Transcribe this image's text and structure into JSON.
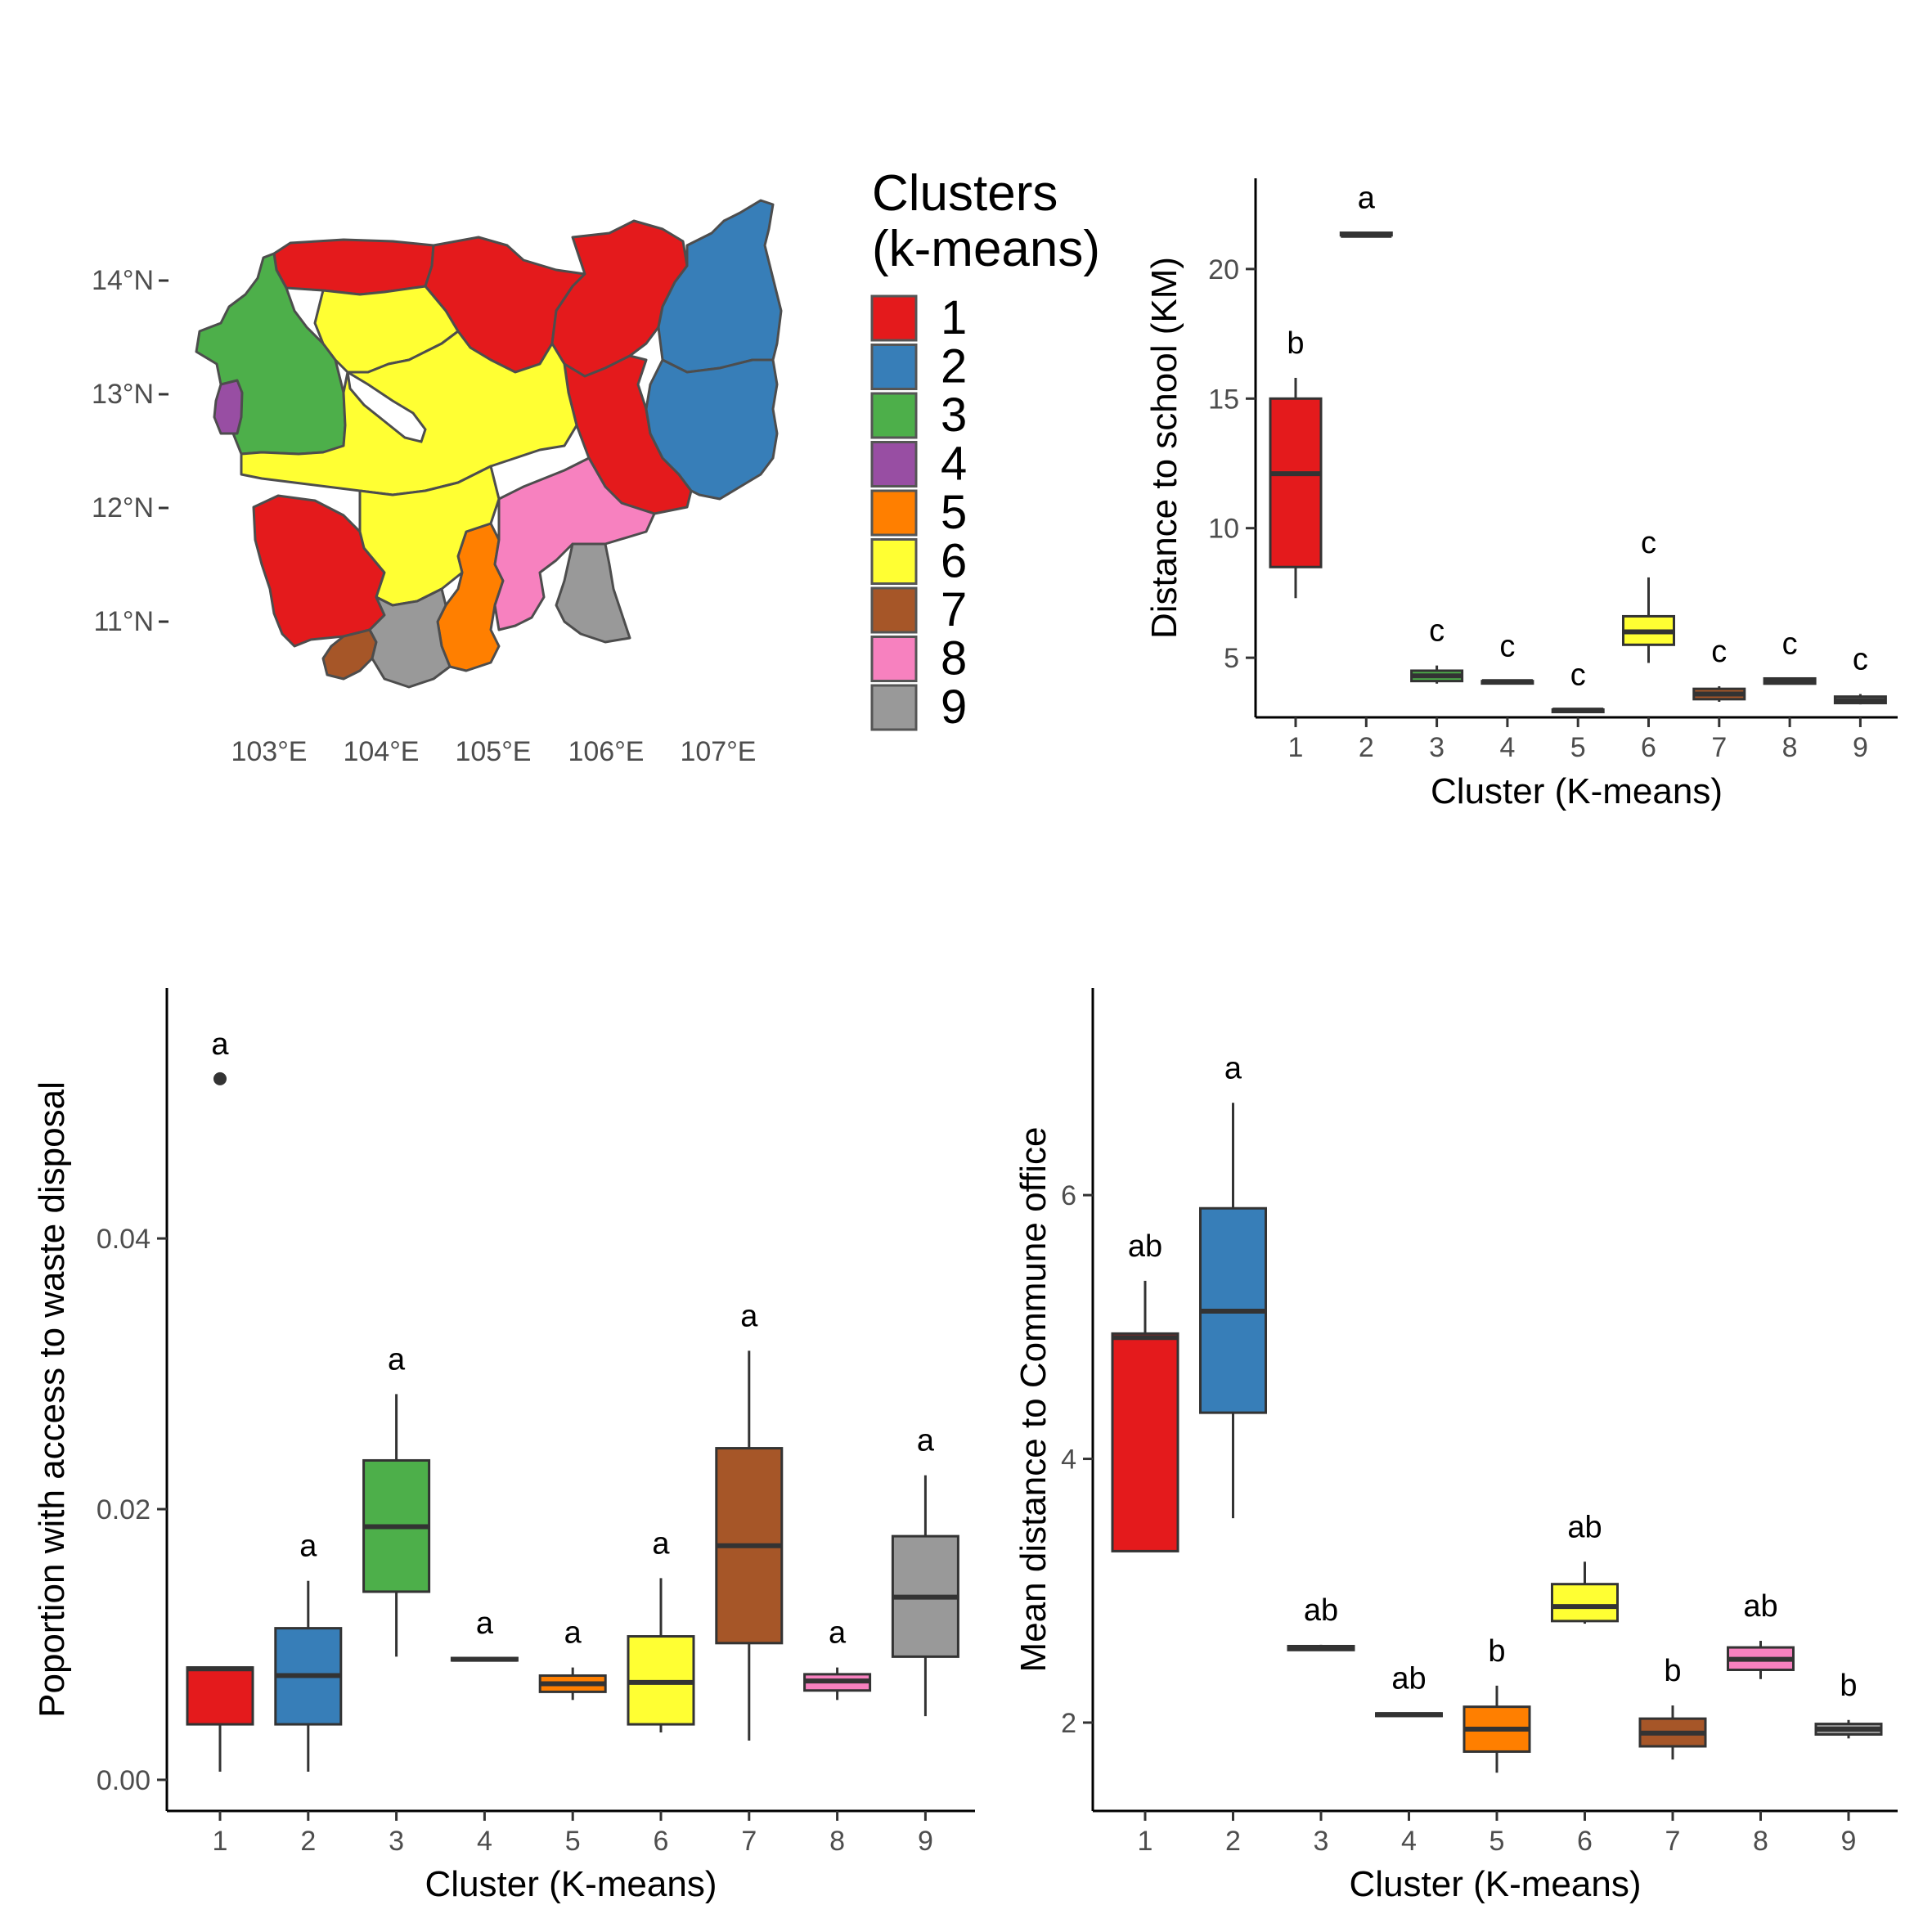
{
  "legend": {
    "title_line1": "Clusters",
    "title_line2": "(k-means)",
    "items": [
      {
        "label": "1",
        "color": "#E41A1C"
      },
      {
        "label": "2",
        "color": "#377EB8"
      },
      {
        "label": "3",
        "color": "#4DAF4A"
      },
      {
        "label": "4",
        "color": "#984EA3"
      },
      {
        "label": "5",
        "color": "#FF7F00"
      },
      {
        "label": "6",
        "color": "#FFFF33"
      },
      {
        "label": "7",
        "color": "#A65628"
      },
      {
        "label": "8",
        "color": "#F781BF"
      },
      {
        "label": "9",
        "color": "#999999"
      }
    ]
  },
  "map": {
    "lat_labels": [
      "14°N",
      "13°N",
      "12°N",
      "11°N"
    ],
    "lon_labels": [
      "103°E",
      "104°E",
      "105°E",
      "106°E",
      "107°E"
    ],
    "regions": [
      {
        "name": "northwest-top",
        "cluster": 1
      },
      {
        "name": "north-center",
        "cluster": 1
      },
      {
        "name": "northeast-1",
        "cluster": 1
      },
      {
        "name": "east-center",
        "cluster": 1
      },
      {
        "name": "southwest",
        "cluster": 1
      },
      {
        "name": "northeast-far",
        "cluster": 2
      },
      {
        "name": "east-far",
        "cluster": 2
      },
      {
        "name": "west",
        "cluster": 3
      },
      {
        "name": "west-enclave",
        "cluster": 4
      },
      {
        "name": "south-center",
        "cluster": 5
      },
      {
        "name": "north-mid",
        "cluster": 6
      },
      {
        "name": "center",
        "cluster": 6
      },
      {
        "name": "center-south",
        "cluster": 6
      },
      {
        "name": "southwest-coast",
        "cluster": 7
      },
      {
        "name": "east-south",
        "cluster": 8
      },
      {
        "name": "south",
        "cluster": 9
      },
      {
        "name": "southeast",
        "cluster": 9
      }
    ]
  },
  "chart_data": [
    {
      "type": "box",
      "id": "school",
      "xlabel": "Cluster (K-means)",
      "ylabel": "Distance to school (KM)",
      "categories": [
        "1",
        "2",
        "3",
        "4",
        "5",
        "6",
        "7",
        "8",
        "9"
      ],
      "ylim": [
        2.7,
        23.5
      ],
      "yticks": [
        5,
        10,
        15,
        20
      ],
      "boxes": [
        {
          "min": 7.3,
          "q1": 8.5,
          "median": 12.1,
          "q3": 15.0,
          "max": 15.8,
          "outliers": [],
          "letter": "b"
        },
        {
          "min": 21.3,
          "q1": 21.3,
          "median": 21.3,
          "q3": 21.4,
          "max": 21.4,
          "outliers": [],
          "letter": "a"
        },
        {
          "min": 4.0,
          "q1": 4.1,
          "median": 4.3,
          "q3": 4.5,
          "max": 4.7,
          "outliers": [],
          "letter": "c"
        },
        {
          "min": 4.05,
          "q1": 4.05,
          "median": 4.08,
          "q3": 4.1,
          "max": 4.1,
          "outliers": [],
          "letter": "c"
        },
        {
          "min": 2.95,
          "q1": 2.95,
          "median": 2.98,
          "q3": 3.0,
          "max": 3.0,
          "outliers": [],
          "letter": "c"
        },
        {
          "min": 4.8,
          "q1": 5.5,
          "median": 6.0,
          "q3": 6.6,
          "max": 8.1,
          "outliers": [],
          "letter": "c"
        },
        {
          "min": 3.3,
          "q1": 3.4,
          "median": 3.6,
          "q3": 3.8,
          "max": 3.9,
          "outliers": [],
          "letter": "c"
        },
        {
          "min": 4.0,
          "q1": 4.0,
          "median": 4.1,
          "q3": 4.2,
          "max": 4.2,
          "outliers": [],
          "letter": "c"
        },
        {
          "min": 3.2,
          "q1": 3.25,
          "median": 3.35,
          "q3": 3.5,
          "max": 3.6,
          "outliers": [],
          "letter": "c"
        }
      ]
    },
    {
      "type": "box",
      "id": "waste",
      "xlabel": "Cluster (K-means)",
      "ylabel": "Poportion with access to waste disposal",
      "categories": [
        "1",
        "2",
        "3",
        "4",
        "5",
        "6",
        "7",
        "8",
        "9"
      ],
      "ylim": [
        -0.0023,
        0.0585
      ],
      "yticks": [
        0.0,
        0.02,
        0.04
      ],
      "ytick_labels": [
        "0.00",
        "0.02",
        "0.04"
      ],
      "boxes": [
        {
          "min": 0.0006,
          "q1": 0.0041,
          "median": 0.0082,
          "q3": 0.0083,
          "max": 0.0083,
          "outliers": [
            0.0518
          ],
          "letter": "a"
        },
        {
          "min": 0.0006,
          "q1": 0.0041,
          "median": 0.0077,
          "q3": 0.0112,
          "max": 0.0147,
          "outliers": [],
          "letter": "a"
        },
        {
          "min": 0.0091,
          "q1": 0.0139,
          "median": 0.0187,
          "q3": 0.0236,
          "max": 0.0285,
          "outliers": [],
          "letter": "a"
        },
        {
          "min": 0.0089,
          "q1": 0.0089,
          "median": 0.0089,
          "q3": 0.009,
          "max": 0.009,
          "outliers": [],
          "letter": "a"
        },
        {
          "min": 0.0059,
          "q1": 0.0065,
          "median": 0.0071,
          "q3": 0.0077,
          "max": 0.0083,
          "outliers": [],
          "letter": "a"
        },
        {
          "min": 0.0035,
          "q1": 0.0041,
          "median": 0.0072,
          "q3": 0.0106,
          "max": 0.0149,
          "outliers": [],
          "letter": "a"
        },
        {
          "min": 0.0029,
          "q1": 0.0101,
          "median": 0.0173,
          "q3": 0.0245,
          "max": 0.0317,
          "outliers": [],
          "letter": "a"
        },
        {
          "min": 0.0059,
          "q1": 0.0066,
          "median": 0.0073,
          "q3": 0.0078,
          "max": 0.0083,
          "outliers": [],
          "letter": "a"
        },
        {
          "min": 0.0047,
          "q1": 0.0091,
          "median": 0.0135,
          "q3": 0.018,
          "max": 0.0225,
          "outliers": [],
          "letter": "a"
        }
      ]
    },
    {
      "type": "box",
      "id": "commune",
      "xlabel": "Cluster (K-means)",
      "ylabel": "Mean distance to Commune office",
      "categories": [
        "1",
        "2",
        "3",
        "4",
        "5",
        "6",
        "7",
        "8",
        "9"
      ],
      "ylim": [
        1.33,
        7.57
      ],
      "yticks": [
        2,
        4,
        6
      ],
      "boxes": [
        {
          "min": 3.3,
          "q1": 3.3,
          "median": 4.92,
          "q3": 4.95,
          "max": 5.35,
          "outliers": [],
          "letter": "ab"
        },
        {
          "min": 3.55,
          "q1": 4.35,
          "median": 5.12,
          "q3": 5.9,
          "max": 6.7,
          "outliers": [],
          "letter": "a"
        },
        {
          "min": 2.55,
          "q1": 2.55,
          "median": 2.57,
          "q3": 2.58,
          "max": 2.59,
          "outliers": [],
          "letter": "ab"
        },
        {
          "min": 2.05,
          "q1": 2.05,
          "median": 2.06,
          "q3": 2.07,
          "max": 2.07,
          "outliers": [],
          "letter": "ab"
        },
        {
          "min": 1.62,
          "q1": 1.78,
          "median": 1.95,
          "q3": 2.12,
          "max": 2.28,
          "outliers": [],
          "letter": "b"
        },
        {
          "min": 2.75,
          "q1": 2.77,
          "median": 2.88,
          "q3": 3.05,
          "max": 3.22,
          "outliers": [],
          "letter": "ab"
        },
        {
          "min": 1.72,
          "q1": 1.82,
          "median": 1.92,
          "q3": 2.03,
          "max": 2.13,
          "outliers": [],
          "letter": "b"
        },
        {
          "min": 2.33,
          "q1": 2.4,
          "median": 2.48,
          "q3": 2.57,
          "max": 2.62,
          "outliers": [],
          "letter": "ab"
        },
        {
          "min": 1.88,
          "q1": 1.91,
          "median": 1.95,
          "q3": 1.99,
          "max": 2.02,
          "outliers": [],
          "letter": "b"
        }
      ]
    }
  ]
}
